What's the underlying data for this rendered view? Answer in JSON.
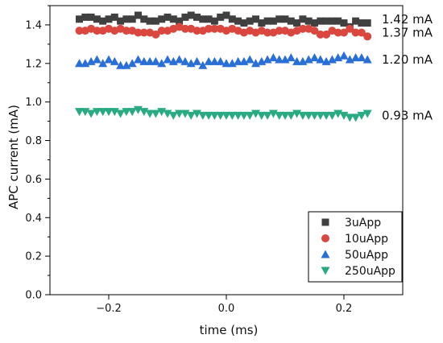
{
  "chart_data": {
    "type": "scatter",
    "xlabel": "time (ms)",
    "ylabel": "APC current (mA)",
    "xlim": [
      -0.3,
      0.3
    ],
    "ylim": [
      0.0,
      1.5
    ],
    "xticks": [
      -0.2,
      0.0,
      0.2
    ],
    "xtick_labels": [
      "−0.2",
      "0.0",
      "0.2"
    ],
    "yticks": [
      0.0,
      0.2,
      0.4,
      0.6,
      0.8,
      1.0,
      1.2,
      1.4
    ],
    "ytick_labels": [
      "0.0",
      "0.2",
      "0.4",
      "0.6",
      "0.8",
      "1.0",
      "1.2",
      "1.4"
    ],
    "grid": false,
    "legend_position": "bottom-right",
    "annotations": [
      {
        "text": "1.42 mA",
        "y": 1.43
      },
      {
        "text": "1.37 mA",
        "y": 1.36
      },
      {
        "text": "1.20 mA",
        "y": 1.22
      },
      {
        "text": "0.93 mA",
        "y": 0.93
      }
    ],
    "series": [
      {
        "name": "3uApp",
        "marker": "square",
        "color": "#404040",
        "x": [
          -0.25,
          -0.24,
          -0.23,
          -0.22,
          -0.21,
          -0.2,
          -0.19,
          -0.18,
          -0.17,
          -0.16,
          -0.15,
          -0.14,
          -0.13,
          -0.12,
          -0.11,
          -0.1,
          -0.09,
          -0.08,
          -0.07,
          -0.06,
          -0.05,
          -0.04,
          -0.03,
          -0.02,
          -0.01,
          0.0,
          0.01,
          0.02,
          0.03,
          0.04,
          0.05,
          0.06,
          0.07,
          0.08,
          0.09,
          0.1,
          0.11,
          0.12,
          0.13,
          0.14,
          0.15,
          0.16,
          0.17,
          0.18,
          0.19,
          0.2,
          0.21,
          0.22,
          0.23,
          0.24
        ],
        "y": [
          1.43,
          1.44,
          1.44,
          1.43,
          1.42,
          1.43,
          1.44,
          1.42,
          1.43,
          1.43,
          1.45,
          1.43,
          1.42,
          1.42,
          1.43,
          1.44,
          1.43,
          1.42,
          1.44,
          1.45,
          1.44,
          1.43,
          1.43,
          1.42,
          1.44,
          1.45,
          1.43,
          1.42,
          1.41,
          1.42,
          1.43,
          1.41,
          1.42,
          1.42,
          1.43,
          1.43,
          1.42,
          1.41,
          1.43,
          1.42,
          1.41,
          1.42,
          1.42,
          1.42,
          1.42,
          1.41,
          1.39,
          1.42,
          1.41,
          1.41
        ]
      },
      {
        "name": "10uApp",
        "marker": "circle",
        "color": "#d9473e",
        "x": [
          -0.25,
          -0.24,
          -0.23,
          -0.22,
          -0.21,
          -0.2,
          -0.19,
          -0.18,
          -0.17,
          -0.16,
          -0.15,
          -0.14,
          -0.13,
          -0.12,
          -0.11,
          -0.1,
          -0.09,
          -0.08,
          -0.07,
          -0.06,
          -0.05,
          -0.04,
          -0.03,
          -0.02,
          -0.01,
          0.0,
          0.01,
          0.02,
          0.03,
          0.04,
          0.05,
          0.06,
          0.07,
          0.08,
          0.09,
          0.1,
          0.11,
          0.12,
          0.13,
          0.14,
          0.15,
          0.16,
          0.17,
          0.18,
          0.19,
          0.2,
          0.21,
          0.22,
          0.23,
          0.24
        ],
        "y": [
          1.37,
          1.37,
          1.38,
          1.37,
          1.37,
          1.38,
          1.37,
          1.38,
          1.37,
          1.37,
          1.36,
          1.36,
          1.36,
          1.35,
          1.37,
          1.37,
          1.38,
          1.39,
          1.38,
          1.38,
          1.37,
          1.37,
          1.38,
          1.38,
          1.38,
          1.37,
          1.38,
          1.37,
          1.36,
          1.37,
          1.36,
          1.37,
          1.36,
          1.36,
          1.37,
          1.37,
          1.36,
          1.37,
          1.38,
          1.38,
          1.37,
          1.35,
          1.35,
          1.37,
          1.36,
          1.36,
          1.38,
          1.36,
          1.36,
          1.34
        ]
      },
      {
        "name": "50uApp",
        "marker": "triangle-up",
        "color": "#2a6fd6",
        "x": [
          -0.25,
          -0.24,
          -0.23,
          -0.22,
          -0.21,
          -0.2,
          -0.19,
          -0.18,
          -0.17,
          -0.16,
          -0.15,
          -0.14,
          -0.13,
          -0.12,
          -0.11,
          -0.1,
          -0.09,
          -0.08,
          -0.07,
          -0.06,
          -0.05,
          -0.04,
          -0.03,
          -0.02,
          -0.01,
          0.0,
          0.01,
          0.02,
          0.03,
          0.04,
          0.05,
          0.06,
          0.07,
          0.08,
          0.09,
          0.1,
          0.11,
          0.12,
          0.13,
          0.14,
          0.15,
          0.16,
          0.17,
          0.18,
          0.19,
          0.2,
          0.21,
          0.22,
          0.23,
          0.24
        ],
        "y": [
          1.2,
          1.2,
          1.21,
          1.22,
          1.2,
          1.22,
          1.21,
          1.19,
          1.19,
          1.2,
          1.22,
          1.21,
          1.21,
          1.21,
          1.2,
          1.22,
          1.21,
          1.22,
          1.21,
          1.2,
          1.21,
          1.19,
          1.21,
          1.21,
          1.21,
          1.2,
          1.2,
          1.21,
          1.21,
          1.22,
          1.2,
          1.21,
          1.22,
          1.23,
          1.22,
          1.22,
          1.23,
          1.21,
          1.21,
          1.22,
          1.23,
          1.22,
          1.21,
          1.22,
          1.23,
          1.24,
          1.22,
          1.23,
          1.23,
          1.22
        ]
      },
      {
        "name": "250uApp",
        "marker": "triangle-down",
        "color": "#2aaa82",
        "x": [
          -0.25,
          -0.24,
          -0.23,
          -0.22,
          -0.21,
          -0.2,
          -0.19,
          -0.18,
          -0.17,
          -0.16,
          -0.15,
          -0.14,
          -0.13,
          -0.12,
          -0.11,
          -0.1,
          -0.09,
          -0.08,
          -0.07,
          -0.06,
          -0.05,
          -0.04,
          -0.03,
          -0.02,
          -0.01,
          0.0,
          0.01,
          0.02,
          0.03,
          0.04,
          0.05,
          0.06,
          0.07,
          0.08,
          0.09,
          0.1,
          0.11,
          0.12,
          0.13,
          0.14,
          0.15,
          0.16,
          0.17,
          0.18,
          0.19,
          0.2,
          0.21,
          0.22,
          0.23,
          0.24
        ],
        "y": [
          0.95,
          0.95,
          0.94,
          0.95,
          0.95,
          0.95,
          0.95,
          0.94,
          0.95,
          0.95,
          0.96,
          0.95,
          0.94,
          0.94,
          0.95,
          0.94,
          0.93,
          0.94,
          0.94,
          0.93,
          0.94,
          0.93,
          0.93,
          0.93,
          0.93,
          0.93,
          0.93,
          0.93,
          0.93,
          0.93,
          0.94,
          0.93,
          0.93,
          0.94,
          0.93,
          0.93,
          0.93,
          0.94,
          0.93,
          0.93,
          0.93,
          0.93,
          0.93,
          0.93,
          0.94,
          0.93,
          0.92,
          0.92,
          0.93,
          0.94
        ]
      }
    ]
  }
}
